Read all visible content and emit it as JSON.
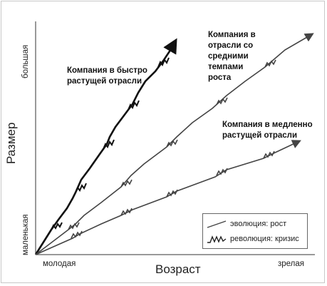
{
  "axes": {
    "y_title": "Размер",
    "x_title": "Возраст",
    "y_low": "маленькая",
    "y_high": "большая",
    "x_low": "молодая",
    "x_high": "зрелая"
  },
  "curves": {
    "fast": {
      "label_line1": "Компания в быстро",
      "label_line2": "растущей отрасли"
    },
    "medium": {
      "label_line1": "Компания в",
      "label_line2": "отрасли со",
      "label_line3": "средними",
      "label_line4": "темпами",
      "label_line5": "роста"
    },
    "slow": {
      "label_line1": "Компания в медленно",
      "label_line2": "растущей отрасли"
    }
  },
  "legend": {
    "evolution": "эволюция: рост",
    "revolution": "революция: кризис"
  }
}
